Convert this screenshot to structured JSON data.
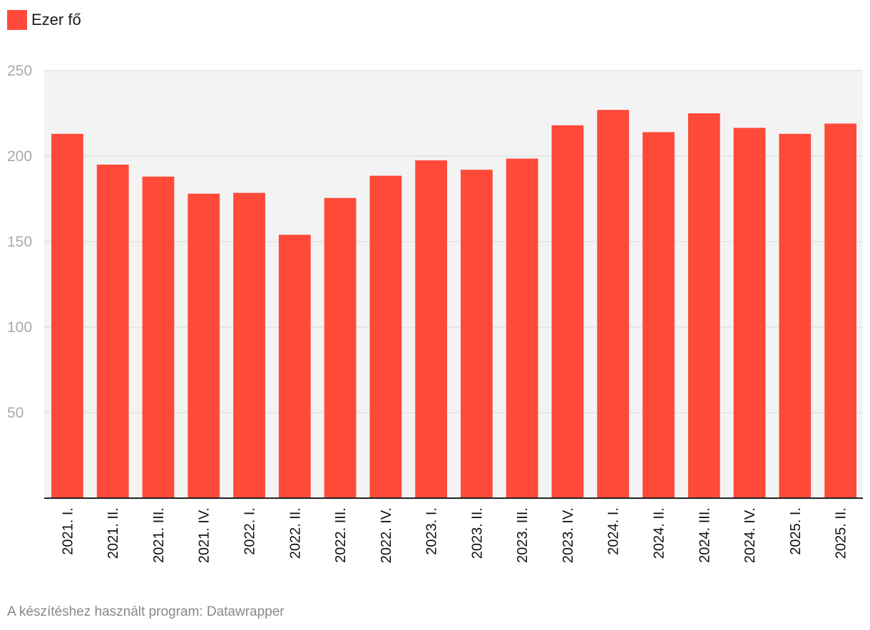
{
  "legend": {
    "label": "Ezer fő"
  },
  "footer": {
    "credit": "A készítéshez használt program: Datawrapper"
  },
  "colors": {
    "bar": "#ff4a3a",
    "plot_background": "#f3f3f3",
    "grid": "#e3e3e3",
    "tick_label": "#aaaaaa",
    "axis": "#222222"
  },
  "chart_data": {
    "type": "bar",
    "categories": [
      "2021. I.",
      "2021. II.",
      "2021. III.",
      "2021. IV.",
      "2022. I.",
      "2022. II.",
      "2022. III.",
      "2022. IV.",
      "2023. I.",
      "2023. II.",
      "2023. III.",
      "2023. IV.",
      "2024. I.",
      "2024. II.",
      "2024. III.",
      "2024. IV.",
      "2025. I.",
      "2025. II."
    ],
    "series": [
      {
        "name": "Ezer fő",
        "values": [
          213,
          195,
          188,
          178,
          178.5,
          154,
          175.5,
          188.5,
          197.5,
          192,
          198.5,
          218,
          227,
          214,
          225,
          216.5,
          213,
          219
        ]
      }
    ],
    "ylim": [
      0,
      250
    ],
    "yticks": [
      50,
      100,
      150,
      200,
      250
    ],
    "grid": true,
    "legend_position": "top-left",
    "title": "",
    "xlabel": "",
    "ylabel": ""
  }
}
